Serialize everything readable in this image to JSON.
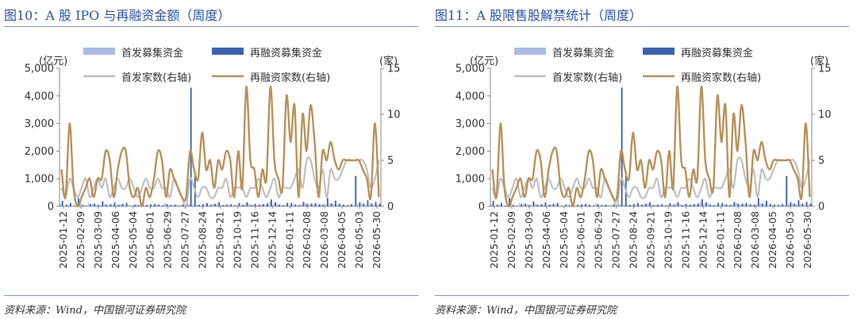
{
  "panels": [
    {
      "title": "图10：A 股 IPO 与再融资金额（周度）",
      "source": "资料来源：Wind，中国银河证券研究院"
    },
    {
      "title": "图11：A 股限售股解禁统计（周度）",
      "source": "资料来源：Wind，中国银河证券研究院"
    }
  ],
  "chart_data": [
    {
      "type": "bar",
      "left_unit": "(亿元)",
      "right_unit": "(家)",
      "ylim": [
        0,
        5000
      ],
      "y2lim": [
        0,
        15
      ],
      "yticks": [
        "0",
        "1,000",
        "2,000",
        "3,000",
        "4,000",
        "5,000"
      ],
      "y2ticks": [
        "0",
        "5",
        "10",
        "15"
      ],
      "xticks": [
        "2025-01-12",
        "2025-02-09",
        "2025-03-09",
        "2025-04-06",
        "2025-05-04",
        "2025-06-01",
        "2025-06-29",
        "2025-07-27",
        "2025-08-24",
        "2025-09-21",
        "2025-10-19",
        "2025-11-16",
        "2025-12-14",
        "2026-01-11",
        "2026-02-08",
        "2026-03-08",
        "2026-04-05",
        "2026-05-03",
        "2026-05-30"
      ],
      "legend": [
        "首发募集资金",
        "再融资募集资金",
        "首发家数(右轴)",
        "再融资家数(右轴)"
      ],
      "colors": {
        "ipo_bar": "#a9bde3",
        "refi_bar": "#3c63b0",
        "ipo_line": "#bfbfbf",
        "refi_line": "#b8925a"
      },
      "ipo_amount": [
        80,
        20,
        60,
        20,
        40,
        100,
        50,
        120,
        80,
        60,
        40,
        90,
        50,
        60,
        40,
        70,
        60,
        50,
        30,
        80,
        60,
        40,
        50,
        50,
        60,
        20,
        100,
        40,
        40,
        60,
        70,
        50,
        80,
        70,
        60,
        40,
        60,
        50,
        80,
        100,
        60,
        70,
        50,
        40,
        60,
        50,
        100,
        80,
        60,
        50,
        70,
        60,
        150,
        80,
        100,
        60,
        50,
        40,
        60,
        50,
        80,
        120,
        60,
        70,
        50,
        60,
        80,
        100,
        90,
        60,
        50,
        40,
        60,
        50,
        80,
        100,
        60,
        80,
        50,
        60
      ],
      "refi_amount": [
        200,
        60,
        120,
        30,
        300,
        50,
        20,
        80,
        100,
        50,
        180,
        60,
        80,
        140,
        60,
        90,
        120,
        20,
        60,
        40,
        80,
        50,
        70,
        90,
        60,
        40,
        80,
        50,
        60,
        20,
        70,
        80,
        4300,
        1100,
        60,
        80,
        120,
        60,
        90,
        150,
        50,
        60,
        80,
        40,
        120,
        60,
        150,
        50,
        90,
        60,
        80,
        100,
        250,
        150,
        60,
        40,
        130,
        120,
        70,
        50,
        160,
        90,
        100,
        120,
        80,
        60,
        300,
        100,
        200,
        90,
        60,
        50,
        80,
        1100,
        150,
        100,
        220,
        100,
        160,
        100
      ],
      "ipo_count": [
        2,
        1,
        3,
        2,
        1,
        2,
        3,
        1,
        2,
        3,
        2,
        3,
        1,
        2,
        3,
        2,
        2,
        3,
        2,
        1,
        2,
        3,
        2,
        2,
        3,
        2,
        2,
        1,
        3,
        2,
        1,
        0,
        3,
        2,
        1,
        2,
        2,
        1,
        1,
        2,
        2,
        3,
        1,
        2,
        2,
        2,
        1,
        2,
        2,
        3,
        2,
        1,
        2,
        3,
        1,
        2,
        2,
        2,
        3,
        4,
        2,
        5,
        5,
        3,
        2,
        4,
        1,
        4,
        3,
        3,
        4,
        5,
        5,
        5,
        5,
        5,
        4,
        2,
        3,
        5
      ],
      "refi_count": [
        4,
        1,
        9,
        2,
        0,
        1,
        2,
        3,
        1,
        3,
        3,
        6,
        5,
        1,
        4,
        6,
        6,
        2,
        1,
        2,
        0,
        2,
        1,
        3,
        6,
        5,
        1,
        4,
        3,
        2,
        1,
        1,
        6,
        4,
        3,
        8,
        4,
        5,
        2,
        5,
        4,
        6,
        5,
        1,
        6,
        2,
        13,
        5,
        4,
        1,
        4,
        3,
        13,
        5,
        3,
        2,
        12,
        7,
        11,
        1,
        10,
        6,
        11,
        7,
        1,
        6,
        5,
        7,
        5,
        4,
        5,
        5,
        5,
        5,
        5,
        4,
        3,
        1,
        9,
        1
      ]
    },
    {
      "type": "bar",
      "left_unit": "(亿元)",
      "right_unit": "(家)",
      "ylim": [
        0,
        5000
      ],
      "y2lim": [
        0,
        15
      ],
      "yticks": [
        "0",
        "1,000",
        "2,000",
        "3,000",
        "4,000",
        "5,000"
      ],
      "y2ticks": [
        "0",
        "5",
        "10",
        "15"
      ],
      "xticks": [
        "2025-01-12",
        "2025-02-09",
        "2025-03-09",
        "2025-04-06",
        "2025-05-04",
        "2025-06-01",
        "2025-06-29",
        "2025-07-27",
        "2025-08-24",
        "2025-09-21",
        "2025-10-19",
        "2025-11-16",
        "2025-12-14",
        "2026-01-11",
        "2026-02-08",
        "2026-03-08",
        "2026-04-05",
        "2026-05-03",
        "2026-05-30"
      ],
      "legend": [
        "首发募集资金",
        "再融资募集资金",
        "首发家数(右轴)",
        "再融资家数(右轴)"
      ],
      "colors": {
        "ipo_bar": "#a9bde3",
        "refi_bar": "#3c63b0",
        "ipo_line": "#bfbfbf",
        "refi_line": "#b8925a"
      },
      "ipo_amount": [
        80,
        20,
        60,
        20,
        40,
        100,
        50,
        120,
        80,
        60,
        40,
        90,
        50,
        60,
        40,
        70,
        60,
        50,
        30,
        80,
        60,
        40,
        50,
        50,
        60,
        20,
        100,
        40,
        40,
        60,
        70,
        50,
        80,
        70,
        60,
        40,
        60,
        50,
        80,
        100,
        60,
        70,
        50,
        40,
        60,
        50,
        100,
        80,
        60,
        50,
        70,
        60,
        150,
        80,
        100,
        60,
        50,
        40,
        60,
        50,
        80,
        120,
        60,
        70,
        50,
        60,
        80,
        100,
        90,
        60,
        50,
        40,
        60,
        50,
        80,
        100,
        60,
        80,
        50,
        60
      ],
      "refi_amount": [
        200,
        60,
        120,
        30,
        300,
        50,
        20,
        80,
        100,
        50,
        180,
        60,
        80,
        140,
        60,
        90,
        120,
        20,
        60,
        40,
        80,
        50,
        70,
        90,
        60,
        40,
        80,
        50,
        60,
        20,
        70,
        80,
        4300,
        1100,
        60,
        80,
        120,
        60,
        90,
        150,
        50,
        60,
        80,
        40,
        120,
        60,
        150,
        50,
        90,
        60,
        80,
        100,
        250,
        150,
        60,
        40,
        130,
        120,
        70,
        50,
        160,
        90,
        100,
        120,
        80,
        60,
        300,
        100,
        200,
        90,
        60,
        50,
        80,
        1100,
        150,
        100,
        220,
        100,
        160,
        100
      ],
      "ipo_count": [
        2,
        1,
        3,
        2,
        1,
        2,
        3,
        1,
        2,
        3,
        2,
        3,
        1,
        2,
        3,
        2,
        2,
        3,
        2,
        1,
        2,
        3,
        2,
        2,
        3,
        2,
        2,
        1,
        3,
        2,
        1,
        0,
        3,
        2,
        1,
        2,
        2,
        1,
        1,
        2,
        2,
        3,
        1,
        2,
        2,
        2,
        1,
        2,
        2,
        3,
        2,
        1,
        2,
        3,
        1,
        2,
        2,
        2,
        3,
        4,
        2,
        5,
        5,
        3,
        2,
        4,
        1,
        4,
        3,
        3,
        4,
        5,
        5,
        5,
        5,
        5,
        4,
        2,
        3,
        5
      ],
      "refi_count": [
        4,
        1,
        9,
        2,
        0,
        1,
        2,
        3,
        1,
        3,
        3,
        6,
        5,
        1,
        4,
        6,
        6,
        2,
        1,
        2,
        0,
        2,
        1,
        3,
        6,
        5,
        1,
        4,
        3,
        2,
        1,
        1,
        6,
        4,
        3,
        8,
        4,
        5,
        2,
        5,
        4,
        6,
        5,
        1,
        6,
        2,
        13,
        5,
        4,
        1,
        4,
        3,
        13,
        5,
        3,
        2,
        12,
        7,
        11,
        1,
        10,
        6,
        11,
        7,
        1,
        6,
        5,
        7,
        5,
        4,
        5,
        5,
        5,
        5,
        5,
        4,
        3,
        1,
        9,
        1
      ]
    }
  ]
}
